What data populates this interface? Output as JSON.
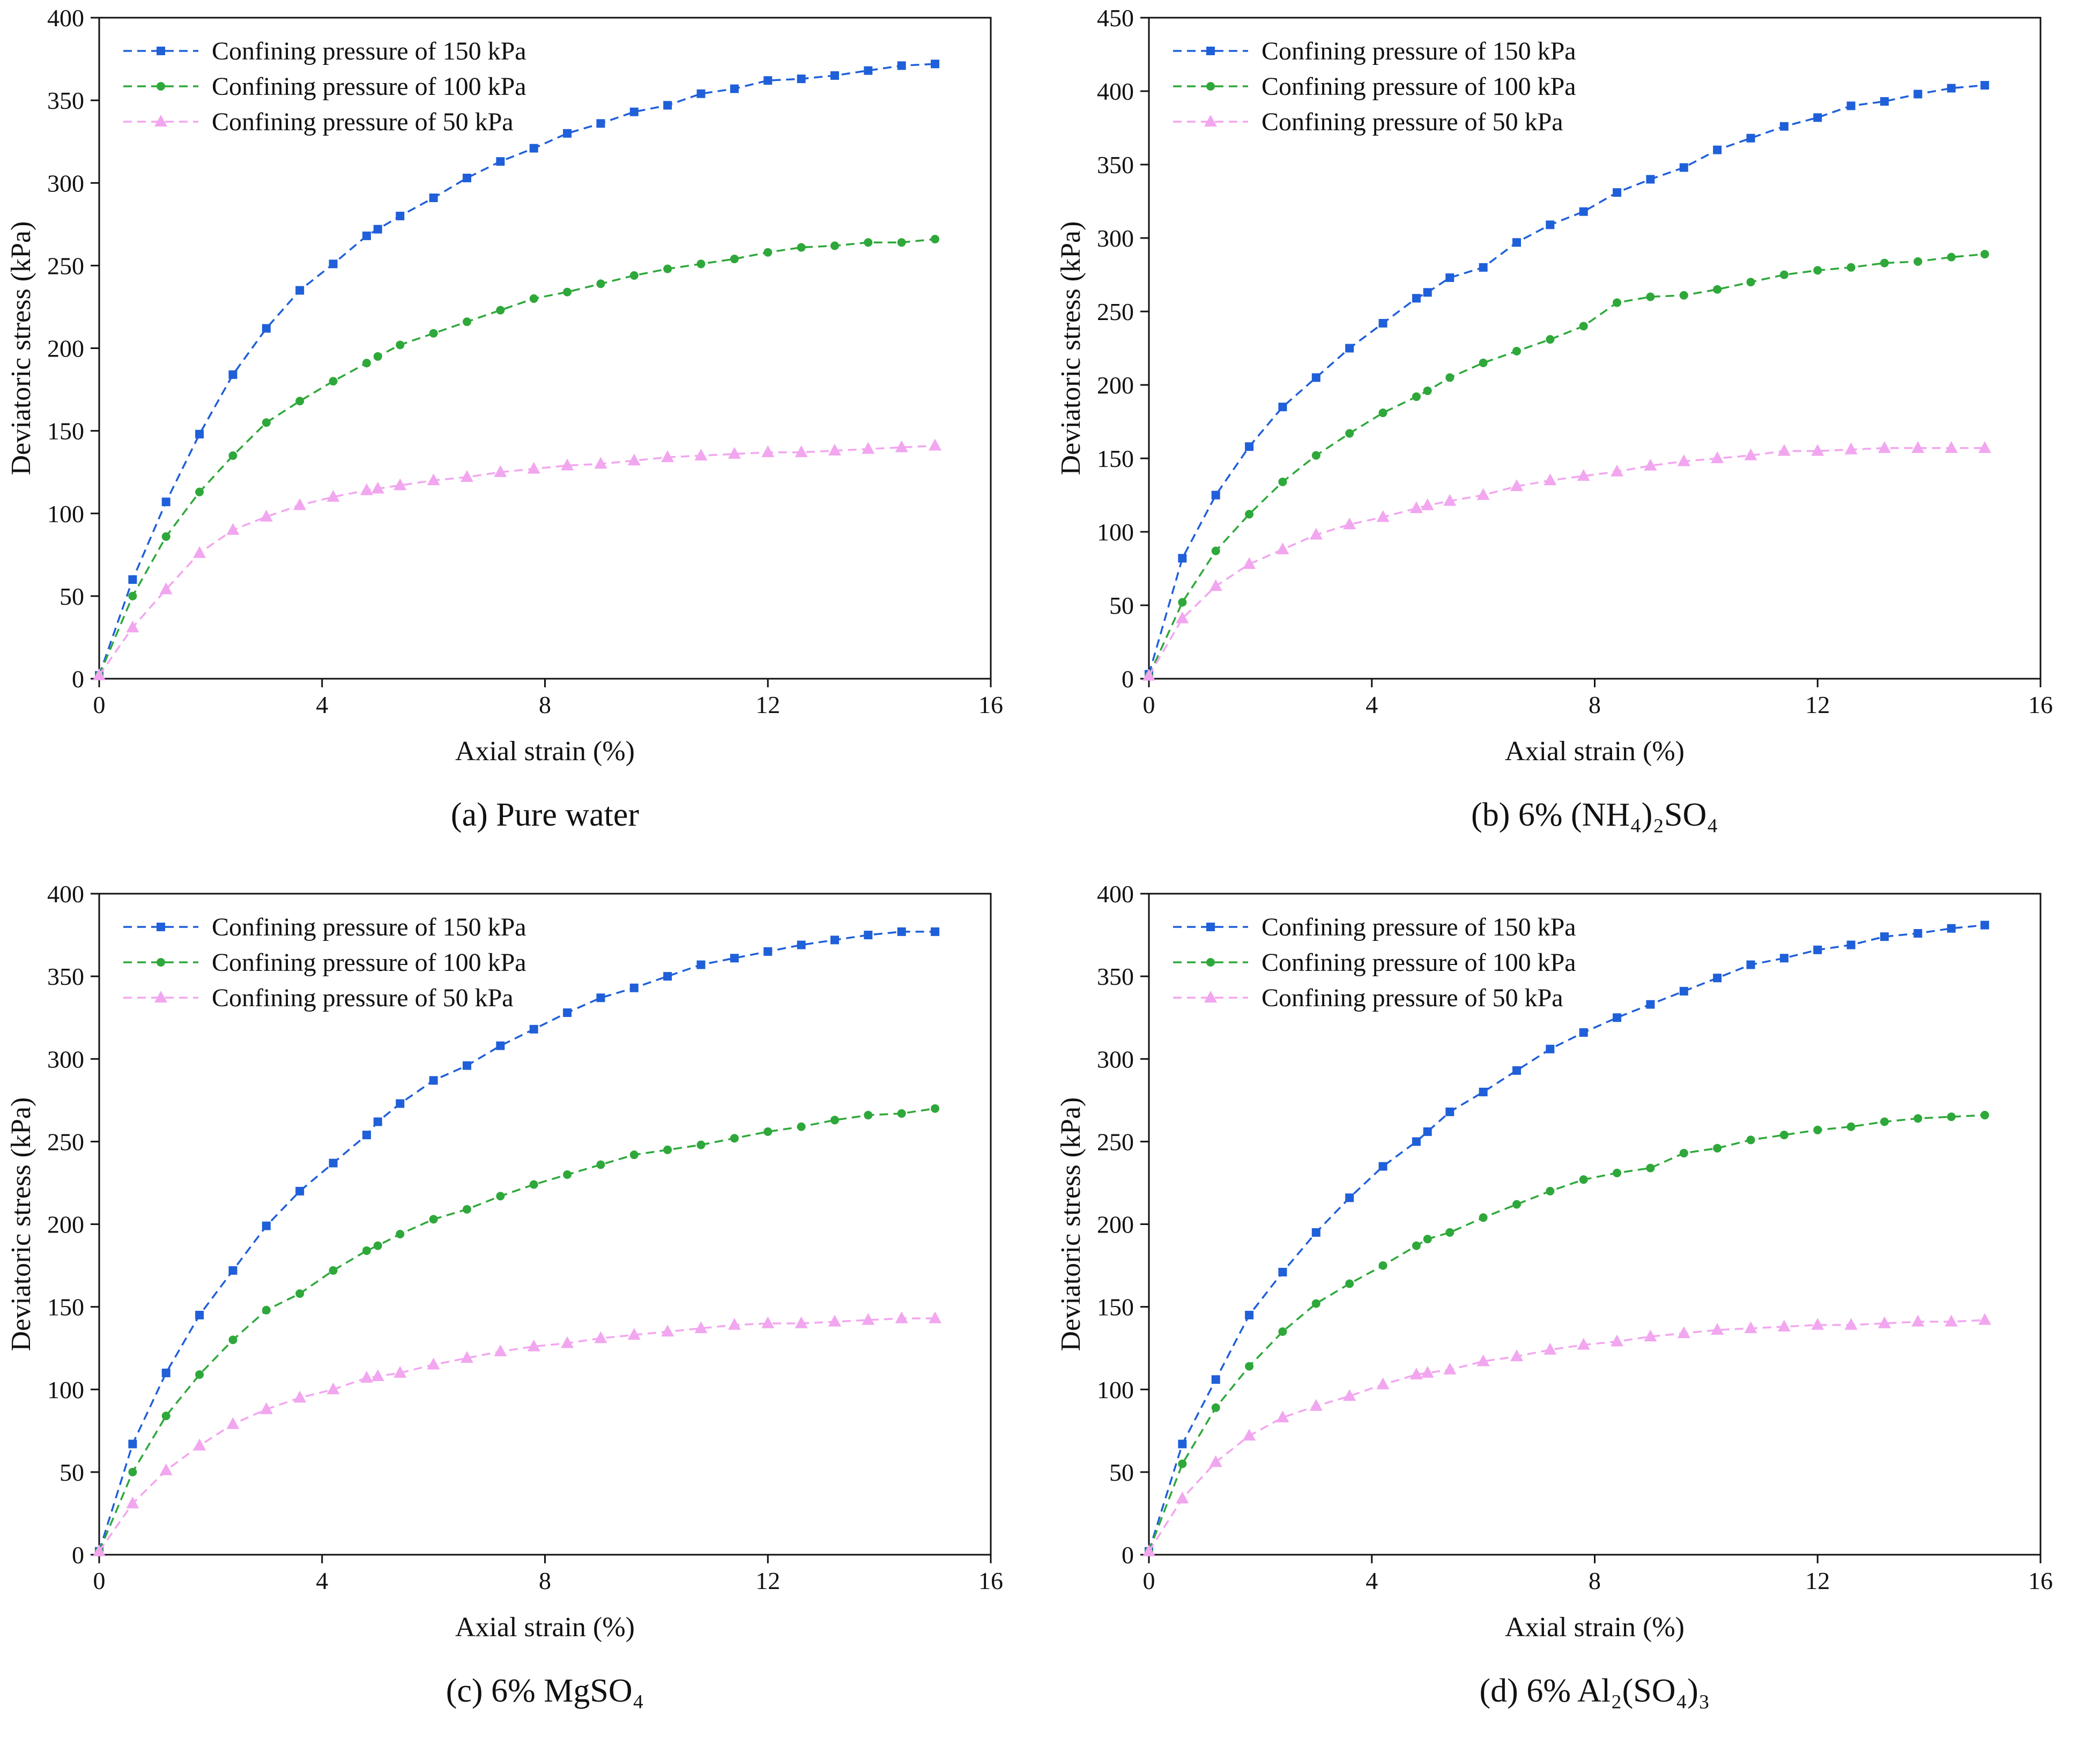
{
  "figure": {
    "layout": "2x2 grid of line charts"
  },
  "chart_data": [
    {
      "type": "line",
      "title": "",
      "caption_label": "(a)",
      "caption_text": "Pure water",
      "xlabel": "Axial strain (%)",
      "ylabel": "Deviatoric stress (kPa)",
      "xlim": [
        0,
        16
      ],
      "ylim": [
        0,
        400
      ],
      "xticks": [
        0,
        4,
        8,
        12,
        16
      ],
      "yticks": [
        0,
        50,
        100,
        150,
        200,
        250,
        300,
        350,
        400
      ],
      "legend_position": "top-left",
      "x": [
        0,
        0.6,
        1.2,
        1.8,
        2.4,
        3.0,
        3.6,
        4.2,
        4.8,
        5.0,
        5.4,
        6.0,
        6.6,
        7.2,
        7.8,
        8.4,
        9.0,
        9.6,
        10.2,
        10.8,
        11.4,
        12.0,
        12.6,
        13.2,
        13.8,
        14.4,
        15.0
      ],
      "series": [
        {
          "name": "Confining pressure of 150 kPa",
          "color": "#1f5fd9",
          "marker": "square",
          "values": [
            2,
            60,
            107,
            148,
            184,
            212,
            235,
            251,
            268,
            272,
            280,
            291,
            303,
            313,
            321,
            330,
            336,
            343,
            347,
            354,
            357,
            362,
            363,
            365,
            368,
            371,
            372
          ]
        },
        {
          "name": "Confining pressure of 100 kPa",
          "color": "#2ea83a",
          "marker": "circle",
          "values": [
            2,
            50,
            86,
            113,
            135,
            155,
            168,
            180,
            191,
            195,
            202,
            209,
            216,
            223,
            230,
            234,
            239,
            244,
            248,
            251,
            254,
            258,
            261,
            262,
            264,
            264,
            266
          ]
        },
        {
          "name": "Confining pressure of 50 kPa",
          "color": "#f2a6ef",
          "marker": "triangle",
          "values": [
            2,
            31,
            54,
            76,
            90,
            98,
            105,
            110,
            114,
            115,
            117,
            120,
            122,
            125,
            127,
            129,
            130,
            132,
            134,
            135,
            136,
            137,
            137,
            138,
            139,
            140,
            141
          ]
        }
      ]
    },
    {
      "type": "line",
      "title": "",
      "caption_label": "(b)",
      "caption_text": "6% (NH₄)₂SO₄",
      "xlabel": "Axial strain (%)",
      "ylabel": "Deviatoric stress (kPa)",
      "xlim": [
        0,
        16
      ],
      "ylim": [
        0,
        450
      ],
      "xticks": [
        0,
        4,
        8,
        12,
        16
      ],
      "yticks": [
        0,
        50,
        100,
        150,
        200,
        250,
        300,
        350,
        400,
        450
      ],
      "legend_position": "top-left",
      "x": [
        0,
        0.6,
        1.2,
        1.8,
        2.4,
        3.0,
        3.6,
        4.2,
        4.8,
        5.0,
        5.4,
        6.0,
        6.6,
        7.2,
        7.8,
        8.4,
        9.0,
        9.6,
        10.2,
        10.8,
        11.4,
        12.0,
        12.6,
        13.2,
        13.8,
        14.4,
        15.0
      ],
      "series": [
        {
          "name": "Confining pressure of 150 kPa",
          "color": "#1f5fd9",
          "marker": "square",
          "values": [
            3,
            82,
            125,
            158,
            185,
            205,
            225,
            242,
            259,
            263,
            273,
            280,
            297,
            309,
            318,
            331,
            340,
            348,
            360,
            368,
            376,
            382,
            390,
            393,
            398,
            402,
            404
          ]
        },
        {
          "name": "Confining pressure of 100 kPa",
          "color": "#2ea83a",
          "marker": "circle",
          "values": [
            2,
            52,
            87,
            112,
            134,
            152,
            167,
            181,
            192,
            196,
            205,
            215,
            223,
            231,
            240,
            256,
            260,
            261,
            265,
            270,
            275,
            278,
            280,
            283,
            284,
            287,
            289
          ]
        },
        {
          "name": "Confining pressure of 50 kPa",
          "color": "#f2a6ef",
          "marker": "triangle",
          "values": [
            2,
            41,
            63,
            78,
            88,
            98,
            105,
            110,
            116,
            118,
            121,
            125,
            131,
            135,
            138,
            141,
            145,
            148,
            150,
            152,
            155,
            155,
            156,
            157,
            157,
            157,
            157
          ]
        }
      ]
    },
    {
      "type": "line",
      "title": "",
      "caption_label": "(c)",
      "caption_text": "6% MgSO₄",
      "xlabel": "Axial strain (%)",
      "ylabel": "Deviatoric stress (kPa)",
      "xlim": [
        0,
        16
      ],
      "ylim": [
        0,
        400
      ],
      "xticks": [
        0,
        4,
        8,
        12,
        16
      ],
      "yticks": [
        0,
        50,
        100,
        150,
        200,
        250,
        300,
        350,
        400
      ],
      "legend_position": "top-left",
      "x": [
        0,
        0.6,
        1.2,
        1.8,
        2.4,
        3.0,
        3.6,
        4.2,
        4.8,
        5.0,
        5.4,
        6.0,
        6.6,
        7.2,
        7.8,
        8.4,
        9.0,
        9.6,
        10.2,
        10.8,
        11.4,
        12.0,
        12.6,
        13.2,
        13.8,
        14.4,
        15.0
      ],
      "series": [
        {
          "name": "Confining pressure of 150 kPa",
          "color": "#1f5fd9",
          "marker": "square",
          "values": [
            2,
            67,
            110,
            145,
            172,
            199,
            220,
            237,
            254,
            262,
            273,
            287,
            296,
            308,
            318,
            328,
            337,
            343,
            350,
            357,
            361,
            365,
            369,
            372,
            375,
            377,
            377
          ]
        },
        {
          "name": "Confining pressure of 100 kPa",
          "color": "#2ea83a",
          "marker": "circle",
          "values": [
            2,
            50,
            84,
            109,
            130,
            148,
            158,
            172,
            184,
            187,
            194,
            203,
            209,
            217,
            224,
            230,
            236,
            242,
            245,
            248,
            252,
            256,
            259,
            263,
            266,
            267,
            270
          ]
        },
        {
          "name": "Confining pressure of 50 kPa",
          "color": "#f2a6ef",
          "marker": "triangle",
          "values": [
            2,
            31,
            51,
            66,
            79,
            88,
            95,
            100,
            107,
            108,
            110,
            115,
            119,
            123,
            126,
            128,
            131,
            133,
            135,
            137,
            139,
            140,
            140,
            141,
            142,
            143,
            143
          ]
        }
      ]
    },
    {
      "type": "line",
      "title": "",
      "caption_label": "(d)",
      "caption_text": "6% Al₂(SO₄)₃",
      "xlabel": "Axial strain (%)",
      "ylabel": "Deviatoric stress (kPa)",
      "xlim": [
        0,
        16
      ],
      "ylim": [
        0,
        400
      ],
      "xticks": [
        0,
        4,
        8,
        12,
        16
      ],
      "yticks": [
        0,
        50,
        100,
        150,
        200,
        250,
        300,
        350,
        400
      ],
      "legend_position": "top-left",
      "x": [
        0,
        0.6,
        1.2,
        1.8,
        2.4,
        3.0,
        3.6,
        4.2,
        4.8,
        5.0,
        5.4,
        6.0,
        6.6,
        7.2,
        7.8,
        8.4,
        9.0,
        9.6,
        10.2,
        10.8,
        11.4,
        12.0,
        12.6,
        13.2,
        13.8,
        14.4,
        15.0
      ],
      "series": [
        {
          "name": "Confining pressure of 150 kPa",
          "color": "#1f5fd9",
          "marker": "square",
          "values": [
            2,
            67,
            106,
            145,
            171,
            195,
            216,
            235,
            250,
            256,
            268,
            280,
            293,
            306,
            316,
            325,
            333,
            341,
            349,
            357,
            361,
            366,
            369,
            374,
            376,
            379,
            381
          ]
        },
        {
          "name": "Confining pressure of 100 kPa",
          "color": "#2ea83a",
          "marker": "circle",
          "values": [
            2,
            55,
            89,
            114,
            135,
            152,
            164,
            175,
            187,
            191,
            195,
            204,
            212,
            220,
            227,
            231,
            234,
            243,
            246,
            251,
            254,
            257,
            259,
            262,
            264,
            265,
            266
          ]
        },
        {
          "name": "Confining pressure of 50 kPa",
          "color": "#f2a6ef",
          "marker": "triangle",
          "values": [
            2,
            34,
            56,
            72,
            83,
            90,
            96,
            103,
            109,
            110,
            112,
            117,
            120,
            124,
            127,
            129,
            132,
            134,
            136,
            137,
            138,
            139,
            139,
            140,
            141,
            141,
            142
          ]
        }
      ]
    }
  ]
}
